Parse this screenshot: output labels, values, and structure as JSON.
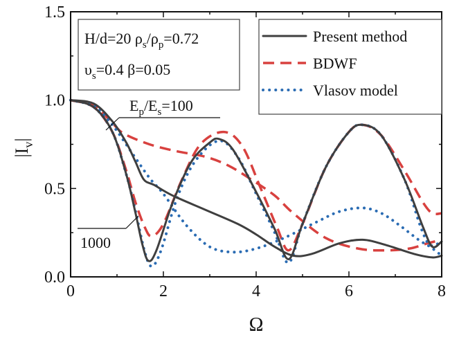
{
  "chart_data": {
    "type": "line",
    "xlabel": "Ω",
    "ylabel": {
      "main": "|I",
      "sub": "v",
      "end": "|"
    },
    "xlim": [
      0,
      8
    ],
    "ylim": [
      0,
      1.5
    ],
    "xticks": [
      "0",
      "2",
      "4",
      "6",
      "8"
    ],
    "yticks": [
      "0.0",
      "0.5",
      "1.0",
      "1.5"
    ],
    "grid": false,
    "legend": {
      "placement": "top-right",
      "entries": [
        {
          "label": "Present method",
          "color": "#3f3f3f",
          "style": "solid"
        },
        {
          "label": "BDWF",
          "color": "#d8413f",
          "style": "dashed"
        },
        {
          "label": "Vlasov model",
          "color": "#2b6cb3",
          "style": "dotted"
        }
      ]
    },
    "parameters": {
      "line1": [
        {
          "t": "H/d=20  ρ"
        },
        {
          "s": "s"
        },
        {
          "t": "/ρ"
        },
        {
          "s": "p"
        },
        {
          "t": "=0.72"
        }
      ],
      "line2": [
        {
          "t": "υ"
        },
        {
          "s": "s"
        },
        {
          "t": "=0.4   β=0.05"
        }
      ]
    },
    "annotations": {
      "ratio": [
        {
          "t": "E"
        },
        {
          "s": "p"
        },
        {
          "t": "/E"
        },
        {
          "s": "s"
        },
        {
          "t": "=100"
        }
      ],
      "ratio2": "1000"
    },
    "series": [
      {
        "method": "Present method",
        "Ep_Es": "100",
        "style": "solid",
        "color": "#3f3f3f",
        "points": [
          [
            0,
            1
          ],
          [
            0.5,
            0.98
          ],
          [
            0.9,
            0.88
          ],
          [
            1.2,
            0.76
          ],
          [
            1.4,
            0.65
          ],
          [
            1.58,
            0.55
          ],
          [
            1.8,
            0.52
          ],
          [
            2.2,
            0.46
          ],
          [
            2.9,
            0.38
          ],
          [
            3.6,
            0.3
          ],
          [
            4.0,
            0.24
          ],
          [
            4.4,
            0.17
          ],
          [
            4.8,
            0.12
          ],
          [
            5.2,
            0.13
          ],
          [
            5.8,
            0.19
          ],
          [
            6.3,
            0.21
          ],
          [
            6.8,
            0.18
          ],
          [
            7.4,
            0.13
          ],
          [
            7.8,
            0.11
          ],
          [
            8,
            0.12
          ]
        ]
      },
      {
        "method": "BDWF",
        "Ep_Es": "100",
        "style": "dashed",
        "color": "#d8413f",
        "points": [
          [
            0,
            1
          ],
          [
            0.5,
            0.97
          ],
          [
            0.9,
            0.87
          ],
          [
            1.15,
            0.81
          ],
          [
            1.7,
            0.75
          ],
          [
            2.3,
            0.71
          ],
          [
            2.9,
            0.68
          ],
          [
            3.4,
            0.63
          ],
          [
            3.9,
            0.55
          ],
          [
            4.4,
            0.46
          ],
          [
            4.8,
            0.36
          ],
          [
            5.5,
            0.22
          ],
          [
            6.2,
            0.16
          ],
          [
            6.8,
            0.15
          ],
          [
            7.3,
            0.16
          ],
          [
            7.7,
            0.19
          ],
          [
            8,
            0.21
          ]
        ]
      },
      {
        "method": "Vlasov model",
        "Ep_Es": "100",
        "style": "dotted",
        "color": "#2b6cb3",
        "points": [
          [
            0,
            1
          ],
          [
            0.5,
            0.97
          ],
          [
            0.9,
            0.86
          ],
          [
            1.3,
            0.71
          ],
          [
            1.7,
            0.56
          ],
          [
            2.0,
            0.47
          ],
          [
            2.5,
            0.29
          ],
          [
            3.0,
            0.17
          ],
          [
            3.5,
            0.14
          ],
          [
            4.0,
            0.16
          ],
          [
            4.6,
            0.22
          ],
          [
            5.3,
            0.31
          ],
          [
            5.8,
            0.37
          ],
          [
            6.3,
            0.39
          ],
          [
            6.7,
            0.36
          ],
          [
            7.1,
            0.29
          ],
          [
            7.5,
            0.21
          ],
          [
            7.75,
            0.17
          ],
          [
            8,
            0.12
          ]
        ]
      },
      {
        "method": "Present method",
        "Ep_Es": "1000",
        "style": "solid",
        "color": "#3f3f3f",
        "points": [
          [
            0,
            1
          ],
          [
            0.5,
            0.96
          ],
          [
            0.9,
            0.82
          ],
          [
            1.2,
            0.58
          ],
          [
            1.4,
            0.36
          ],
          [
            1.55,
            0.18
          ],
          [
            1.68,
            0.09
          ],
          [
            1.85,
            0.15
          ],
          [
            2.2,
            0.42
          ],
          [
            2.6,
            0.65
          ],
          [
            3.0,
            0.76
          ],
          [
            3.2,
            0.78
          ],
          [
            3.5,
            0.72
          ],
          [
            4.0,
            0.48
          ],
          [
            4.4,
            0.27
          ],
          [
            4.7,
            0.1
          ],
          [
            5.0,
            0.3
          ],
          [
            5.5,
            0.62
          ],
          [
            6.0,
            0.82
          ],
          [
            6.3,
            0.86
          ],
          [
            6.7,
            0.8
          ],
          [
            7.2,
            0.55
          ],
          [
            7.6,
            0.28
          ],
          [
            7.8,
            0.17
          ],
          [
            8,
            0.2
          ]
        ]
      },
      {
        "method": "BDWF",
        "Ep_Es": "1000",
        "style": "dashed",
        "color": "#d8413f",
        "points": [
          [
            0,
            1
          ],
          [
            0.5,
            0.96
          ],
          [
            0.9,
            0.82
          ],
          [
            1.2,
            0.6
          ],
          [
            1.4,
            0.42
          ],
          [
            1.6,
            0.28
          ],
          [
            1.75,
            0.23
          ],
          [
            2.0,
            0.3
          ],
          [
            2.4,
            0.55
          ],
          [
            2.8,
            0.75
          ],
          [
            3.3,
            0.82
          ],
          [
            3.7,
            0.74
          ],
          [
            4.1,
            0.5
          ],
          [
            4.45,
            0.28
          ],
          [
            4.7,
            0.15
          ],
          [
            5.0,
            0.3
          ],
          [
            5.5,
            0.62
          ],
          [
            6.0,
            0.82
          ],
          [
            6.3,
            0.86
          ],
          [
            6.7,
            0.8
          ],
          [
            7.2,
            0.6
          ],
          [
            7.6,
            0.42
          ],
          [
            7.8,
            0.36
          ],
          [
            8,
            0.36
          ]
        ]
      },
      {
        "method": "Vlasov model",
        "Ep_Es": "1000",
        "style": "dotted",
        "color": "#2b6cb3",
        "points": [
          [
            0,
            1
          ],
          [
            0.5,
            0.96
          ],
          [
            0.9,
            0.82
          ],
          [
            1.2,
            0.58
          ],
          [
            1.4,
            0.37
          ],
          [
            1.6,
            0.14
          ],
          [
            1.75,
            0.06
          ],
          [
            1.95,
            0.15
          ],
          [
            2.3,
            0.45
          ],
          [
            2.7,
            0.66
          ],
          [
            3.2,
            0.77
          ],
          [
            3.6,
            0.68
          ],
          [
            4.0,
            0.47
          ],
          [
            4.4,
            0.25
          ],
          [
            4.7,
            0.08
          ],
          [
            5.0,
            0.3
          ],
          [
            5.5,
            0.62
          ],
          [
            6.0,
            0.82
          ],
          [
            6.3,
            0.86
          ],
          [
            6.7,
            0.8
          ],
          [
            7.2,
            0.55
          ],
          [
            7.55,
            0.28
          ],
          [
            7.75,
            0.18
          ],
          [
            8,
            0.2
          ]
        ]
      }
    ]
  }
}
